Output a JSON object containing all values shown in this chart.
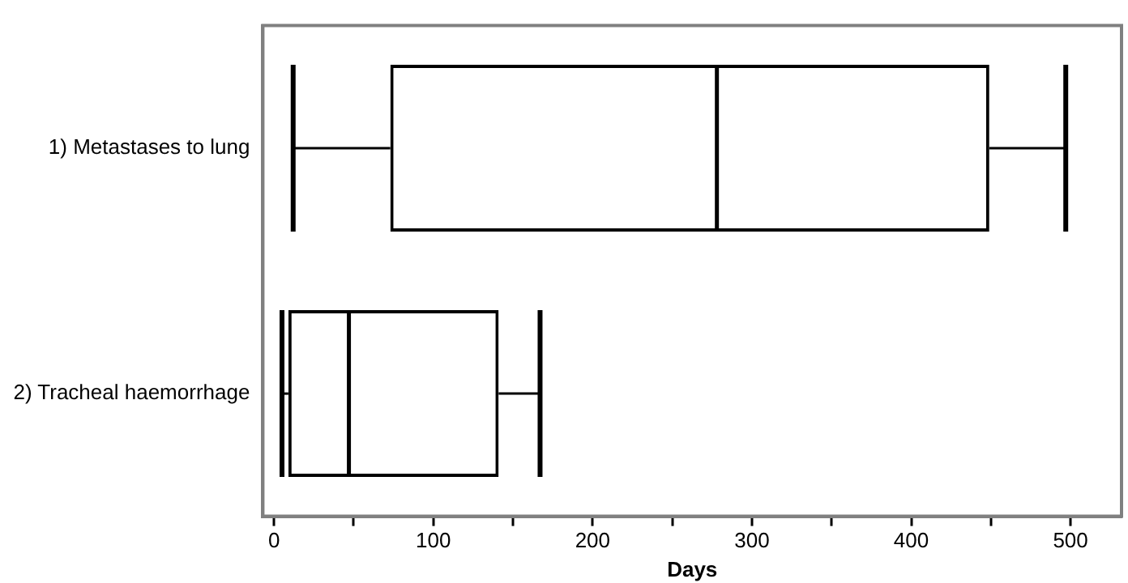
{
  "chart_data": {
    "type": "box",
    "xlabel": "Days",
    "orientation": "horizontal",
    "categories": [
      "1) Metastases to lung",
      "2) Tracheal haemorrhage"
    ],
    "boxes": [
      {
        "low": 12,
        "q1": 73,
        "median": 278,
        "q3": 449,
        "high": 497
      },
      {
        "low": 5,
        "q1": 9,
        "median": 47,
        "q3": 141,
        "high": 167
      }
    ],
    "color": "#000000",
    "xlim": [
      -7,
      532
    ],
    "xticks": [
      0,
      {
        "value": 50,
        "label": null
      },
      100,
      {
        "value": 150,
        "label": null
      },
      200,
      {
        "value": 250,
        "label": null
      },
      300,
      {
        "value": 350,
        "label": null
      },
      400,
      {
        "value": 450,
        "label": null
      },
      500
    ],
    "grid": false,
    "legend": false
  }
}
